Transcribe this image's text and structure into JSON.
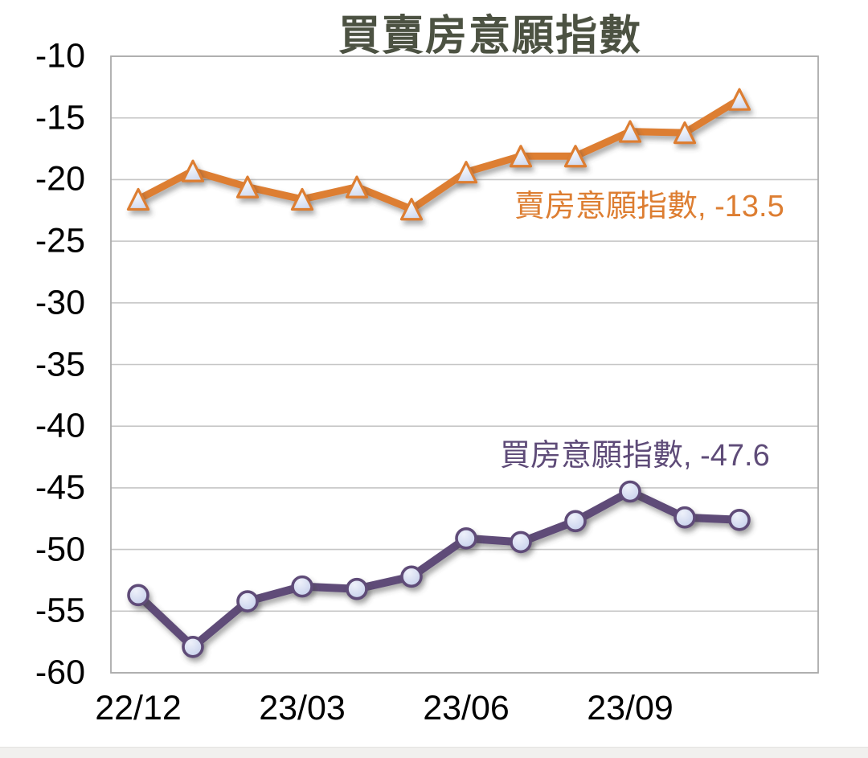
{
  "window": {
    "background": "#ffffff",
    "bottom_strip_color": "#f1f0ee"
  },
  "chart_data": {
    "type": "line",
    "title": "買賣房意願指數",
    "title_color": "#4c5242",
    "categories": [
      "22/12",
      "23/01",
      "23/02",
      "23/03",
      "23/04",
      "23/05",
      "23/06",
      "23/07",
      "23/08",
      "23/09",
      "23/10",
      "23/11"
    ],
    "x_tick_indices": [
      0,
      3,
      6,
      9
    ],
    "x_tick_labels": [
      "22/12",
      "23/03",
      "23/06",
      "23/09"
    ],
    "ylim": [
      -60,
      -10
    ],
    "y_ticks": [
      -10,
      -15,
      -20,
      -25,
      -30,
      -35,
      -40,
      -45,
      -50,
      -55,
      -60
    ],
    "y_tick_labels": [
      "-10",
      "-15",
      "-20",
      "-25",
      "-30",
      "-35",
      "-40",
      "-45",
      "-50",
      "-55",
      "-60"
    ],
    "grid": true,
    "legend_position": "inline-data-labels",
    "axis_text_color": "#000000",
    "gridline_color": "#c6c6c6",
    "plot_border_color": "#ababab",
    "series": [
      {
        "name": "賣房意願指數",
        "marker": "triangle",
        "color": "#dd7e32",
        "marker_fill_light": "#f5f8fd",
        "marker_fill_dark": "#ccd6ee",
        "values": [
          -21.6,
          -19.3,
          -20.6,
          -21.6,
          -20.6,
          -22.4,
          -19.4,
          -18.1,
          -18.1,
          -16.1,
          -16.2,
          -13.5
        ],
        "latest_value": -13.5
      },
      {
        "name": "買房意願指數",
        "marker": "circle",
        "color": "#5e4b78",
        "marker_fill_light": "#eef1fa",
        "marker_fill_dark": "#c3cdea",
        "values": [
          -53.7,
          -57.9,
          -54.2,
          -53.0,
          -53.2,
          -52.2,
          -49.1,
          -49.4,
          -47.7,
          -45.3,
          -47.4,
          -47.6
        ],
        "latest_value": -47.6
      }
    ],
    "annotations": [
      {
        "text": "賣房意願指數, -13.5",
        "color": "#dd7e32",
        "series": "賣房意願指數"
      },
      {
        "text": "買房意願指數, -47.6",
        "color": "#5e4b78",
        "series": "買房意願指數"
      }
    ]
  }
}
